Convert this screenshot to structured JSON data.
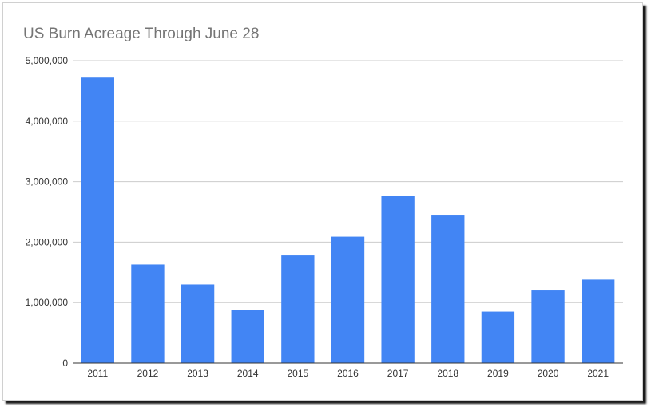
{
  "chart_data": {
    "type": "bar",
    "title": "US Burn Acreage Through June 28",
    "xlabel": "",
    "ylabel": "",
    "categories": [
      "2011",
      "2012",
      "2013",
      "2014",
      "2015",
      "2016",
      "2017",
      "2018",
      "2019",
      "2020",
      "2021"
    ],
    "values": [
      4720000,
      1630000,
      1300000,
      880000,
      1780000,
      2090000,
      2770000,
      2440000,
      850000,
      1200000,
      1380000
    ],
    "ylim": [
      0,
      5000000
    ],
    "yticks": [
      "0",
      "1,000,000",
      "2,000,000",
      "3,000,000",
      "4,000,000",
      "5,000,000"
    ],
    "grid": true,
    "legend": "none",
    "colors": {
      "bar": "#4285f4",
      "grid": "#cccccc",
      "axis": "#333333",
      "title": "#757575"
    }
  }
}
